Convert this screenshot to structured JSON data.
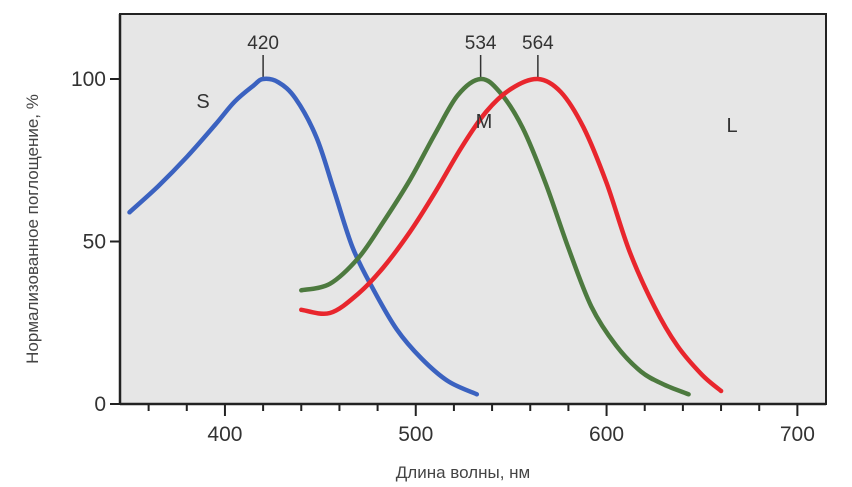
{
  "chart_data": {
    "type": "line",
    "xlabel": "Длина волны, нм",
    "ylabel": "Нормализованное поглощение, %",
    "xlim": [
      345,
      715
    ],
    "ylim": [
      0,
      120
    ],
    "x_ticks": [
      400,
      500,
      600,
      700
    ],
    "y_ticks": [
      0,
      50,
      100
    ],
    "grid": false,
    "background": "#e6e6e6",
    "series": [
      {
        "name": "S",
        "color": "#3b62c0",
        "peak": 420,
        "x": [
          350,
          365,
          380,
          395,
          405,
          415,
          420,
          428,
          437,
          448,
          457,
          467,
          478,
          490,
          503,
          517,
          532
        ],
        "y": [
          59,
          67,
          76,
          86,
          93,
          98,
          100,
          99,
          94,
          82,
          66,
          48,
          35,
          23,
          14,
          7,
          3
        ]
      },
      {
        "name": "M",
        "color": "#4d7a3f",
        "peak": 534,
        "x": [
          440,
          455,
          470,
          483,
          497,
          510,
          522,
          534,
          544,
          556,
          568,
          580,
          592,
          605,
          618,
          630,
          643
        ],
        "y": [
          35,
          37,
          45,
          56,
          69,
          83,
          95,
          100,
          96,
          85,
          68,
          48,
          30,
          18,
          10,
          6,
          3
        ]
      },
      {
        "name": "L",
        "color": "#e8262d",
        "peak": 564,
        "x": [
          440,
          455,
          470,
          483,
          497,
          510,
          524,
          537,
          550,
          564,
          576,
          588,
          600,
          612,
          625,
          637,
          650,
          660
        ],
        "y": [
          29,
          28,
          34,
          42,
          53,
          65,
          79,
          90,
          97,
          100,
          96,
          85,
          68,
          47,
          30,
          18,
          9,
          4
        ]
      }
    ]
  }
}
